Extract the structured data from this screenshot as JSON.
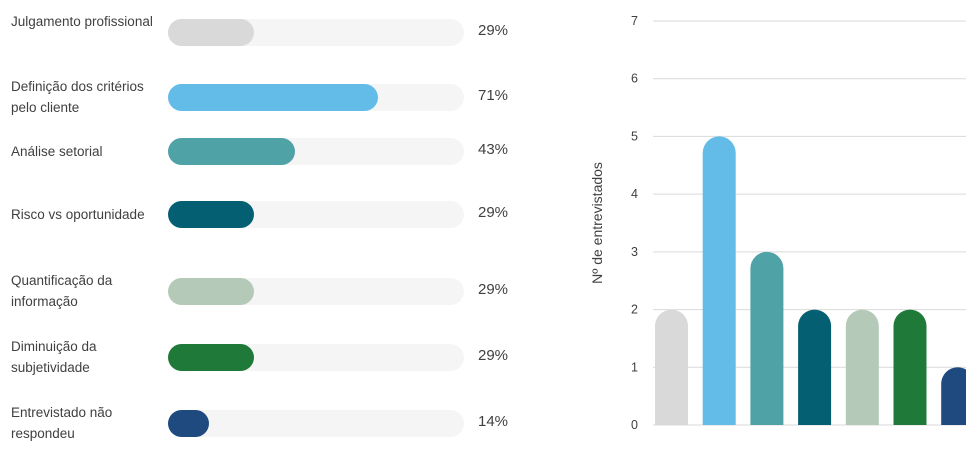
{
  "chart_data": [
    {
      "type": "bar",
      "orientation": "horizontal",
      "categories": [
        "Julgamento profissional",
        "Definição dos critérios pelo cliente",
        "Análise setorial",
        "Risco vs oportunidade",
        "Quantificação da informação",
        "Diminuição da subjetividade",
        "Entrevistado não respondeu"
      ],
      "values": [
        29,
        71,
        43,
        29,
        29,
        29,
        14
      ],
      "value_labels": [
        "29%",
        "71%",
        "43%",
        "29%",
        "29%",
        "29%",
        "14%"
      ],
      "colors": [
        "#d9d9d9",
        "#63bce8",
        "#4fa2a6",
        "#055f72",
        "#b5c9b9",
        "#1f7a3a",
        "#1f4a80"
      ],
      "xlim": [
        0,
        100
      ],
      "grid": false
    },
    {
      "type": "bar",
      "orientation": "vertical",
      "values": [
        2,
        5,
        3,
        2,
        2,
        2,
        1
      ],
      "colors": [
        "#d9d9d9",
        "#63bce8",
        "#4fa2a6",
        "#055f72",
        "#b5c9b9",
        "#1f7a3a",
        "#1f4a80"
      ],
      "ylabel": "Nº de entrevistados",
      "yticks": [
        "0",
        "1",
        "2",
        "3",
        "4",
        "5",
        "6",
        "7"
      ],
      "ylim": [
        0,
        7
      ],
      "grid": true
    }
  ]
}
